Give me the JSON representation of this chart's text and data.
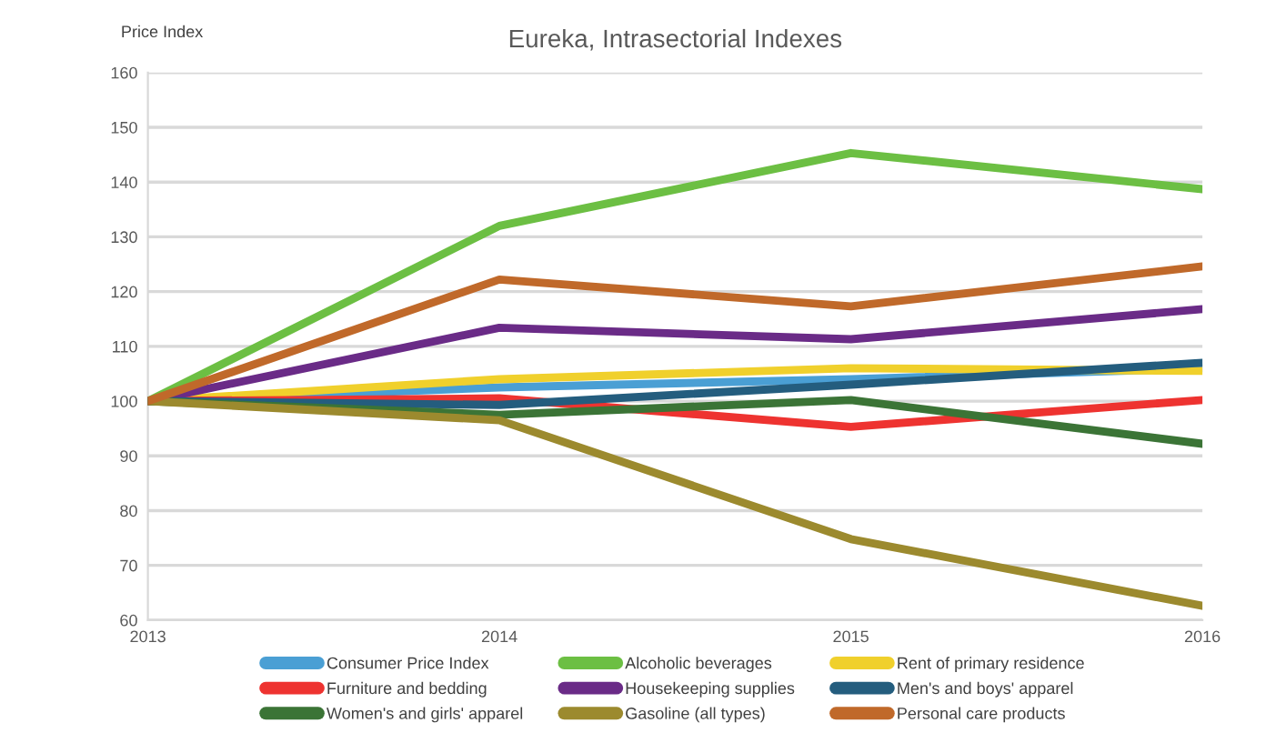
{
  "chart_data": {
    "type": "line",
    "title": "Eureka, Intrasectorial Indexes",
    "ylabel": "Price Index",
    "x": [
      2013,
      2014,
      2015,
      2016
    ],
    "xlim": [
      2013,
      2016
    ],
    "xticks": [
      2013,
      2014,
      2015,
      2016
    ],
    "ylim": [
      60,
      160
    ],
    "yticks": [
      60,
      70,
      80,
      90,
      100,
      110,
      120,
      130,
      140,
      150,
      160
    ],
    "grid": "y",
    "legend": "bottom",
    "marker": "none",
    "line_style": "solid",
    "series": [
      {
        "name": "Consumer Price Index",
        "color": "#4a9fd4",
        "values": [
          100,
          102.5,
          104,
          106
        ]
      },
      {
        "name": "Alcoholic beverages",
        "color": "#6cbf43",
        "values": [
          100,
          132,
          145.3,
          138.7
        ]
      },
      {
        "name": "Rent of primary residence",
        "color": "#f0d02c",
        "values": [
          100,
          104,
          106,
          105.5
        ]
      },
      {
        "name": "Furniture and bedding",
        "color": "#ee3330",
        "values": [
          100,
          100.5,
          95.3,
          100.2
        ]
      },
      {
        "name": "Housekeeping supplies",
        "color": "#6a2b87",
        "values": [
          100,
          113.4,
          111.3,
          116.8
        ]
      },
      {
        "name": "Men's and boys' apparel",
        "color": "#245d7e",
        "values": [
          100,
          99.3,
          103,
          107
        ]
      },
      {
        "name": "Women's and girls' apparel",
        "color": "#3b7436",
        "values": [
          100,
          97.5,
          100.2,
          92.2
        ]
      },
      {
        "name": "Gasoline (all types)",
        "color": "#9c8a2e",
        "values": [
          100,
          96.5,
          74.8,
          62.6
        ]
      },
      {
        "name": "Personal care products",
        "color": "#c0692a",
        "values": [
          100,
          122.2,
          117.3,
          124.6
        ]
      }
    ]
  }
}
